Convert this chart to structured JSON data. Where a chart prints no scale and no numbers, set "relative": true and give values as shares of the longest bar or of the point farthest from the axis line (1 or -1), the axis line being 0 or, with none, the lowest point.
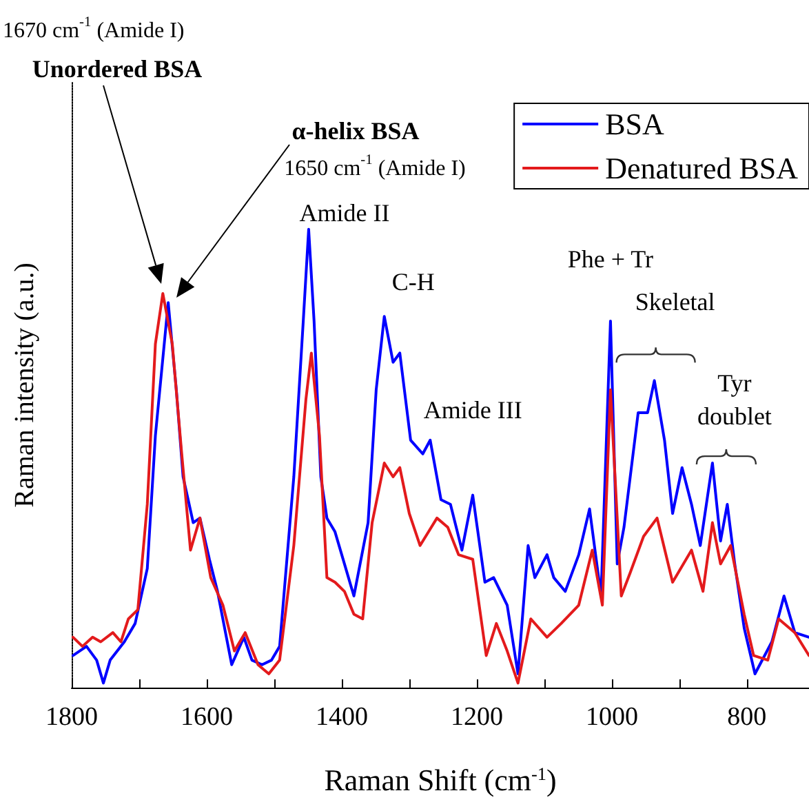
{
  "chart_data": {
    "type": "line",
    "relative": true,
    "xlabel": "Raman Shift (cm$^{-1}$)",
    "ylabel": "Raman intensity (a.u.)",
    "xlim": [
      1800,
      708
    ],
    "xticks": [
      1800,
      {
        "value": 1700,
        "label": null
      },
      1600,
      {
        "value": 1500,
        "label": null
      },
      1400,
      {
        "value": 1300,
        "label": null
      },
      1200,
      {
        "value": 1100,
        "label": null
      },
      1000,
      {
        "value": 900,
        "label": null
      },
      800
    ],
    "grid": false,
    "legend": "top right",
    "marker": "none",
    "line_style": "solid",
    "series": [
      {
        "name": "BSA",
        "color": "#0000ff",
        "x": [
          1798,
          1778,
          1763,
          1753,
          1743,
          1722,
          1706,
          1688,
          1676,
          1657,
          1645,
          1635,
          1620,
          1610,
          1596,
          1584,
          1563,
          1545,
          1533,
          1518,
          1504,
          1492,
          1471,
          1457,
          1449,
          1441,
          1431,
          1422,
          1410,
          1400,
          1382,
          1361,
          1349,
          1337,
          1324,
          1314,
          1298,
          1280,
          1269,
          1253,
          1239,
          1222,
          1206,
          1188,
          1175,
          1155,
          1139,
          1124,
          1114,
          1096,
          1086,
          1069,
          1049,
          1033,
          1016,
          1002,
          992,
          982,
          961,
          947,
          937,
          922,
          910,
          896,
          882,
          869,
          851,
          839,
          829,
          818,
          804,
          788,
          763,
          745,
          729,
          708
        ],
        "values": [
          0.07,
          0.09,
          0.06,
          0.01,
          0.06,
          0.1,
          0.14,
          0.26,
          0.55,
          0.84,
          0.65,
          0.46,
          0.36,
          0.37,
          0.28,
          0.21,
          0.05,
          0.11,
          0.06,
          0.05,
          0.06,
          0.09,
          0.46,
          0.8,
          1.0,
          0.8,
          0.46,
          0.37,
          0.34,
          0.29,
          0.2,
          0.36,
          0.65,
          0.81,
          0.71,
          0.73,
          0.54,
          0.51,
          0.54,
          0.41,
          0.4,
          0.3,
          0.42,
          0.23,
          0.24,
          0.18,
          0.03,
          0.31,
          0.24,
          0.29,
          0.24,
          0.21,
          0.29,
          0.39,
          0.2,
          0.8,
          0.27,
          0.35,
          0.6,
          0.6,
          0.67,
          0.54,
          0.38,
          0.48,
          0.4,
          0.31,
          0.49,
          0.32,
          0.4,
          0.27,
          0.13,
          0.03,
          0.1,
          0.2,
          0.12,
          0.11
        ]
      },
      {
        "name": "Denatured BSA",
        "color": "#e31a1c",
        "x": [
          1798,
          1784,
          1769,
          1757,
          1739,
          1727,
          1716,
          1702,
          1688,
          1676,
          1665,
          1651,
          1637,
          1624,
          1610,
          1594,
          1576,
          1559,
          1543,
          1524,
          1508,
          1492,
          1471,
          1453,
          1445,
          1433,
          1422,
          1410,
          1396,
          1382,
          1369,
          1355,
          1337,
          1324,
          1314,
          1300,
          1284,
          1259,
          1243,
          1227,
          1206,
          1186,
          1171,
          1155,
          1139,
          1120,
          1096,
          1075,
          1049,
          1029,
          1014,
          1002,
          986,
          973,
          953,
          933,
          910,
          882,
          865,
          851,
          839,
          824,
          804,
          790,
          769,
          753,
          729,
          708
        ],
        "values": [
          0.11,
          0.09,
          0.11,
          0.1,
          0.12,
          0.1,
          0.15,
          0.17,
          0.4,
          0.75,
          0.86,
          0.75,
          0.51,
          0.3,
          0.37,
          0.24,
          0.18,
          0.08,
          0.12,
          0.05,
          0.03,
          0.06,
          0.31,
          0.63,
          0.73,
          0.55,
          0.24,
          0.23,
          0.21,
          0.16,
          0.15,
          0.36,
          0.49,
          0.46,
          0.48,
          0.38,
          0.31,
          0.37,
          0.35,
          0.29,
          0.28,
          0.07,
          0.14,
          0.08,
          0.01,
          0.15,
          0.11,
          0.14,
          0.18,
          0.3,
          0.18,
          0.65,
          0.2,
          0.25,
          0.33,
          0.37,
          0.23,
          0.3,
          0.21,
          0.36,
          0.27,
          0.31,
          0.16,
          0.07,
          0.06,
          0.15,
          0.12,
          0.07
        ]
      }
    ],
    "annotations": [
      "1670 cm$^{-1}$ (Amide I)",
      "Unordered BSA",
      "α-helix BSA",
      "1650 cm$^{-1}$ (Amide I)",
      {
        "text": "Amide II",
        "x": 1449,
        "y": 1.0
      },
      {
        "text": "C-H",
        "x": 1337,
        "y": 0.81
      },
      {
        "text": "Amide III",
        "x": 1269,
        "y": 0.54
      },
      {
        "text": "Phe + Tr",
        "x": 1002,
        "y": 0.8
      },
      {
        "text": "Skeletal",
        "x": 937,
        "y": 0.67
      },
      {
        "text": "Tyr doublet",
        "x": 851,
        "y": 0.49
      }
    ]
  }
}
